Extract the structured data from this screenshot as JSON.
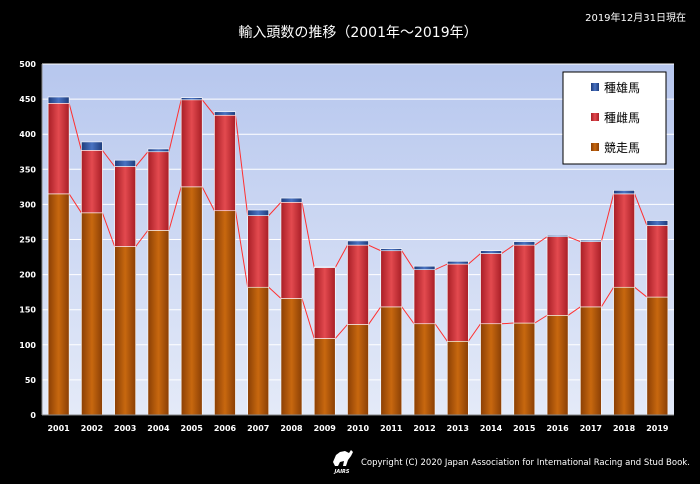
{
  "header": {
    "date_note": "2019年12月31日現在"
  },
  "footer": {
    "logo_text": "JAIRS",
    "copyright": "Copyright (C) 2020 Japan Association for International Racing and Stud Book."
  },
  "colors": {
    "background": "#000000",
    "plot_top": "#b7c7ee",
    "plot_bottom": "#e4eaf8",
    "stallion": "#2f55a0",
    "mare": "#d9373d",
    "racehorse": "#b85a0c",
    "connector": "#ff3030"
  },
  "chart_data": {
    "type": "bar",
    "stacked": true,
    "title": "輸入頭数の推移（2001年～2019年）",
    "categories": [
      "2001",
      "2002",
      "2003",
      "2004",
      "2005",
      "2006",
      "2007",
      "2008",
      "2009",
      "2010",
      "2011",
      "2012",
      "2013",
      "2014",
      "2015",
      "2016",
      "2017",
      "2018",
      "2019"
    ],
    "series": [
      {
        "name": "競走馬",
        "values": [
          315,
          288,
          240,
          263,
          325,
          291,
          182,
          166,
          109,
          129,
          154,
          130,
          105,
          130,
          131,
          142,
          154,
          182,
          168
        ]
      },
      {
        "name": "種雌馬",
        "values": [
          129,
          89,
          114,
          112,
          124,
          136,
          102,
          137,
          101,
          113,
          80,
          77,
          110,
          100,
          111,
          112,
          93,
          133,
          102
        ]
      },
      {
        "name": "種雄馬",
        "values": [
          9,
          12,
          9,
          4,
          3,
          5,
          8,
          6,
          1,
          6,
          3,
          5,
          4,
          4,
          5,
          2,
          2,
          5,
          7
        ]
      }
    ],
    "ylim": [
      0,
      500
    ],
    "yticks": [
      "0",
      "50",
      "100",
      "150",
      "200",
      "250",
      "300",
      "350",
      "400",
      "450",
      "500"
    ],
    "legend": [
      "種雄馬",
      "種雌馬",
      "競走馬"
    ],
    "legend_position": "top-right",
    "grid": true
  }
}
